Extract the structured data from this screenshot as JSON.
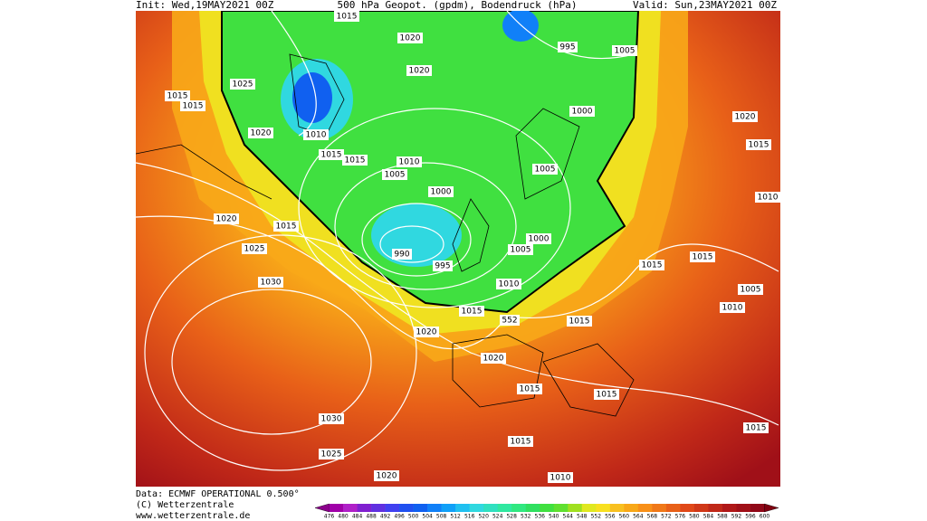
{
  "header": {
    "init": "Init: Wed,19MAY2021 00Z",
    "title": "500 hPa Geopot. (gpdm), Bodendruck (hPa)",
    "valid": "Valid: Sun,23MAY2021 00Z"
  },
  "map": {
    "isobar_labels": [
      "1015",
      "1020",
      "995",
      "1005",
      "1020",
      "1025",
      "1015",
      "1015",
      "1000",
      "1010",
      "1020",
      "1020",
      "1015",
      "1015",
      "1015",
      "1010",
      "1005",
      "1005",
      "1000",
      "1010",
      "1020",
      "1015",
      "990",
      "995",
      "1000",
      "1005",
      "1025",
      "1015",
      "1015",
      "1010",
      "1030",
      "1005",
      "1010",
      "1015",
      "552",
      "1015",
      "1020",
      "1020",
      "1015",
      "1015",
      "1030",
      "1015",
      "1025",
      "1015",
      "1020",
      "1010"
    ]
  },
  "footer": {
    "data": "Data: ECMWF OPERATIONAL 0.500°",
    "copyright": "(C) Wetterzentrale",
    "url": "www.wetterzentrale.de"
  },
  "scale": {
    "labels": [
      "476",
      "480",
      "484",
      "488",
      "492",
      "496",
      "500",
      "504",
      "508",
      "512",
      "516",
      "520",
      "524",
      "528",
      "532",
      "536",
      "540",
      "544",
      "548",
      "552",
      "556",
      "560",
      "564",
      "568",
      "572",
      "576",
      "580",
      "584",
      "588",
      "592",
      "596",
      "600"
    ],
    "colors": [
      "#8b008b",
      "#a000a8",
      "#b020c8",
      "#8020d0",
      "#6030e0",
      "#4040f0",
      "#2050f0",
      "#1060f0",
      "#1080f8",
      "#10a0f8",
      "#20c0f0",
      "#30d8e0",
      "#30e0c0",
      "#30e8a0",
      "#30e880",
      "#30e060",
      "#40e040",
      "#60e030",
      "#a0e020",
      "#e0e820",
      "#f8e020",
      "#f8c020",
      "#f8a818",
      "#f89018",
      "#f07818",
      "#e86018",
      "#e04818",
      "#d03818",
      "#c02818",
      "#b01818",
      "#a01018",
      "#900818",
      "#800010"
    ]
  }
}
